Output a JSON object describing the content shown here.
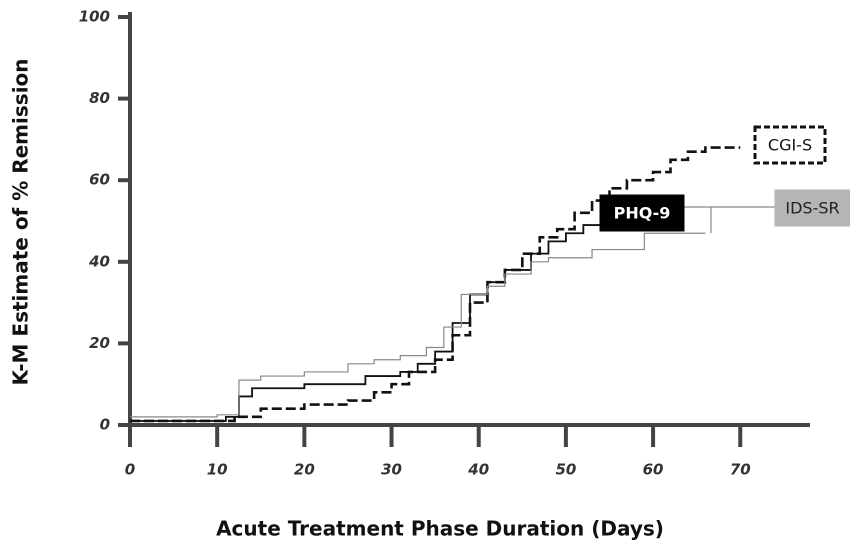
{
  "chart_data": {
    "type": "line",
    "xlabel": "Acute Treatment Phase Duration (Days)",
    "ylabel": "K-M Estimate of % Remission",
    "xlim": [
      0,
      78
    ],
    "ylim": [
      0,
      100
    ],
    "xticks": [
      0,
      10,
      20,
      30,
      40,
      50,
      60,
      70
    ],
    "yticks": [
      0,
      20,
      40,
      60,
      80,
      100
    ],
    "series": [
      {
        "name": "CGI-S",
        "color": "#111111",
        "style": "dashed",
        "x": [
          0,
          12,
          15,
          20,
          25,
          28,
          30,
          32,
          35,
          37,
          39,
          41,
          43,
          45,
          47,
          49,
          51,
          53,
          55,
          57,
          60,
          62,
          64,
          66,
          70
        ],
        "values": [
          1,
          2,
          4,
          5,
          6,
          8,
          10,
          13,
          16,
          22,
          30,
          35,
          38,
          42,
          46,
          48,
          52,
          55,
          58,
          60,
          62,
          65,
          67,
          68,
          68
        ]
      },
      {
        "name": "PHQ-9",
        "color": "#111111",
        "style": "solid",
        "x": [
          0,
          11,
          12.5,
          14,
          20,
          27,
          31,
          33,
          35,
          37,
          39,
          41,
          43,
          46,
          48,
          50,
          52,
          54
        ],
        "values": [
          1,
          2,
          7,
          9,
          10,
          12,
          13,
          15,
          18,
          25,
          32,
          35,
          38,
          42,
          45,
          47,
          49,
          51
        ]
      },
      {
        "name": "IDS-SR",
        "color": "#888888",
        "style": "solid",
        "x": [
          0,
          10,
          12.5,
          15,
          20,
          25,
          28,
          31,
          34,
          36,
          38,
          41,
          43,
          46,
          48,
          53,
          58,
          59,
          66
        ],
        "values": [
          2,
          2.5,
          11,
          12,
          13,
          15,
          16,
          17,
          19,
          24,
          32,
          34,
          37,
          40,
          41,
          43,
          43,
          47,
          47
        ]
      }
    ]
  }
}
